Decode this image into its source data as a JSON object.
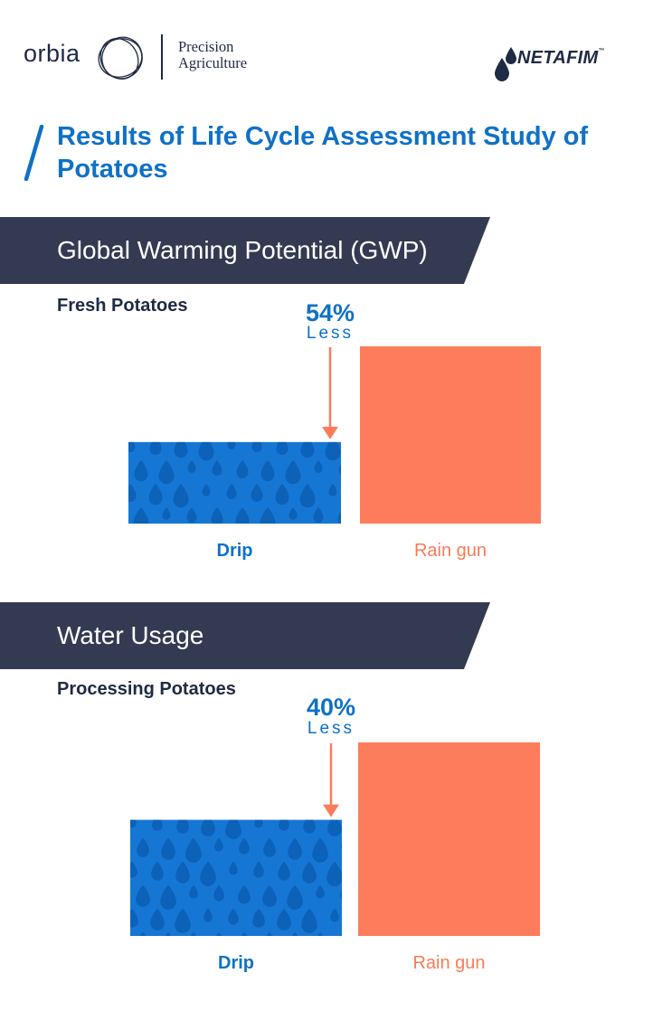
{
  "header": {
    "orbia_logo_text": "orbia",
    "division_line1": "Precision",
    "division_line2": "Agriculture",
    "netafim_logo_text": "NETAFIM",
    "netafim_tm": "™"
  },
  "title": "Results of Life Cycle Assessment Study of Potatoes",
  "colors": {
    "dark_navy": "#333a52",
    "accent_blue": "#0f71c7",
    "drip_blue": "#1676d4",
    "drop_blue": "#0b5fb3",
    "rain_orange": "#fd7c5c"
  },
  "chart_data": [
    {
      "type": "bar",
      "section_title": "Global Warming Potential (GWP)",
      "subtitle": "Fresh Potatoes",
      "categories": [
        "Drip",
        "Rain gun"
      ],
      "values": [
        46,
        100
      ],
      "ylim": [
        0,
        100
      ],
      "annotation": {
        "value": "54%",
        "text": "Less",
        "target": "Drip"
      },
      "grid": false,
      "legend": "none"
    },
    {
      "type": "bar",
      "section_title": "Water Usage",
      "subtitle": "Processing Potatoes",
      "categories": [
        "Drip",
        "Rain gun"
      ],
      "values": [
        60,
        100
      ],
      "ylim": [
        0,
        100
      ],
      "annotation": {
        "value": "40%",
        "text": "Less",
        "target": "Drip"
      },
      "grid": false,
      "legend": "none"
    }
  ]
}
